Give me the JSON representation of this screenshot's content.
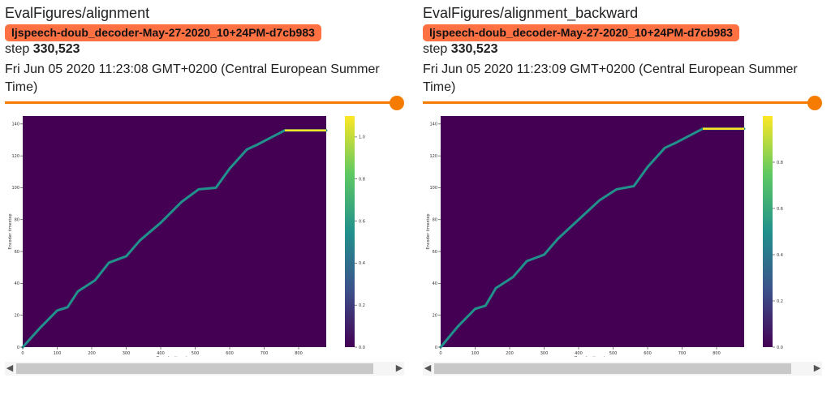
{
  "cards": [
    {
      "tag": "EvalFigures/alignment",
      "run": "ljspeech-doub_decoder-May-27-2020_10+24PM-d7cb983",
      "step_label": "step",
      "step_value": "330,523",
      "date": "Fri Jun 05 2020 11:23:08 GMT+0200 (Central European Summer Time)",
      "slider_value": 1.0,
      "chart_data": {
        "type": "heatmap",
        "xlabel": "Decoder timestep",
        "ylabel": "Encoder timestep",
        "xlim": [
          0,
          880
        ],
        "ylim": [
          0,
          145
        ],
        "x_ticks": [
          "0",
          "100",
          "200",
          "300",
          "400",
          "500",
          "600",
          "700",
          "800"
        ],
        "y_ticks": [
          "0",
          "20",
          "40",
          "60",
          "80",
          "100",
          "120",
          "140"
        ],
        "colorbar_ticks": [
          "0.0",
          "0.2",
          "0.4",
          "0.6",
          "0.8",
          "1.0"
        ],
        "colorbar_range": [
          0,
          1.1
        ],
        "alignment_path": [
          [
            0,
            0
          ],
          [
            50,
            12
          ],
          [
            100,
            23
          ],
          [
            130,
            25
          ],
          [
            160,
            35
          ],
          [
            210,
            42
          ],
          [
            250,
            53
          ],
          [
            300,
            57
          ],
          [
            340,
            67
          ],
          [
            400,
            78
          ],
          [
            460,
            91
          ],
          [
            510,
            99
          ],
          [
            560,
            100
          ],
          [
            600,
            112
          ],
          [
            650,
            124
          ],
          [
            680,
            127
          ],
          [
            760,
            136
          ],
          [
            880,
            136
          ]
        ]
      }
    },
    {
      "tag": "EvalFigures/alignment_backward",
      "run": "ljspeech-doub_decoder-May-27-2020_10+24PM-d7cb983",
      "step_label": "step",
      "step_value": "330,523",
      "date": "Fri Jun 05 2020 11:23:09 GMT+0200 (Central European Summer Time)",
      "slider_value": 1.0,
      "chart_data": {
        "type": "heatmap",
        "xlabel": "Decoder timestep",
        "ylabel": "Encoder timestep",
        "xlim": [
          0,
          880
        ],
        "ylim": [
          0,
          145
        ],
        "x_ticks": [
          "0",
          "100",
          "200",
          "300",
          "400",
          "500",
          "600",
          "700",
          "800"
        ],
        "y_ticks": [
          "0",
          "20",
          "40",
          "60",
          "80",
          "100",
          "120",
          "140"
        ],
        "colorbar_ticks": [
          "0.0",
          "0.2",
          "0.4",
          "0.6",
          "0.8"
        ],
        "colorbar_range": [
          0,
          1.0
        ],
        "alignment_path": [
          [
            0,
            0
          ],
          [
            50,
            13
          ],
          [
            100,
            24
          ],
          [
            130,
            26
          ],
          [
            160,
            37
          ],
          [
            210,
            44
          ],
          [
            250,
            54
          ],
          [
            300,
            58
          ],
          [
            340,
            68
          ],
          [
            400,
            80
          ],
          [
            460,
            92
          ],
          [
            510,
            99
          ],
          [
            560,
            101
          ],
          [
            600,
            113
          ],
          [
            650,
            125
          ],
          [
            680,
            128
          ],
          [
            760,
            137
          ],
          [
            880,
            137
          ]
        ]
      }
    }
  ],
  "colors": {
    "run_badge": "#ff7043",
    "slider": "#f57c00",
    "heatmap_bg": "#440154",
    "path": "#21918c",
    "path_high": "#fde725"
  },
  "icons": {
    "scroll_left": "chevron-left-icon",
    "scroll_right": "chevron-right-icon"
  }
}
